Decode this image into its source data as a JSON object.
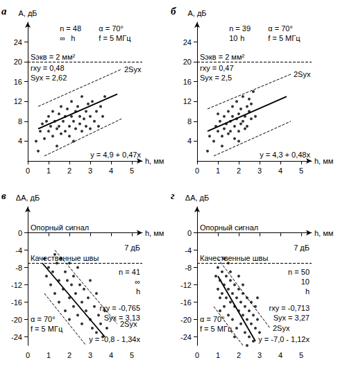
{
  "chart_data": [
    {
      "type": "scatter",
      "panel": "а",
      "x_label": "h, мм",
      "y_label": "A, дБ",
      "xlim": [
        0,
        5.5
      ],
      "xticks": [
        0,
        1,
        2,
        3,
        4,
        5
      ],
      "ylim": [
        0,
        28
      ],
      "yticks": [
        4,
        8,
        12,
        16,
        20,
        24
      ],
      "x": [
        0.4,
        0.5,
        0.6,
        0.7,
        0.8,
        0.9,
        1.0,
        1.0,
        1.1,
        1.2,
        1.2,
        1.3,
        1.4,
        1.5,
        1.5,
        1.6,
        1.6,
        1.7,
        1.8,
        1.8,
        1.9,
        2.0,
        2.0,
        2.1,
        2.1,
        2.2,
        2.3,
        2.3,
        2.4,
        2.5,
        2.5,
        2.6,
        2.6,
        2.7,
        2.8,
        2.8,
        2.9,
        3.0,
        3.0,
        3.1,
        3.2,
        3.3,
        3.4,
        3.5,
        3.6,
        3.7,
        1.4,
        2.2
      ],
      "values": [
        4,
        2,
        6,
        7.5,
        4.5,
        8,
        9,
        6,
        7,
        5,
        10,
        8,
        6.5,
        9.5,
        7,
        11,
        5.5,
        8,
        6,
        9,
        10.5,
        7,
        5,
        9,
        12,
        8,
        6.5,
        10,
        11,
        7.5,
        9,
        13,
        6,
        8.5,
        10,
        7,
        11.5,
        9,
        6.5,
        12,
        8,
        10,
        7,
        11,
        9,
        13,
        3,
        4
      ],
      "fit_line": {
        "x": [
          0.5,
          4.3
        ],
        "y": [
          6.5,
          13.5
        ]
      },
      "band_upper": {
        "x": [
          0.5,
          4.5
        ],
        "y": [
          11,
          18.5
        ]
      },
      "band_lower": {
        "x": [
          0.8,
          4.5
        ],
        "y": [
          1,
          8.5
        ]
      },
      "ref_lines": [
        {
          "y": 20,
          "label": "Sэкв = 2 мм²"
        }
      ],
      "n_label": "n = 48",
      "params": [
        "α = 70°",
        "f = 5 МГц"
      ],
      "diagram_labels": [
        "∞",
        "h"
      ],
      "stats": [
        "rxy = 0,48",
        "Syx = 2,62"
      ],
      "band_label": "2Syx",
      "equation": "y = 4,9 + 0,47x"
    },
    {
      "type": "scatter",
      "panel": "б",
      "x_label": "h, мм",
      "y_label": "A, дБ",
      "xlim": [
        0,
        5.5
      ],
      "xticks": [
        0,
        1,
        2,
        3,
        4,
        5
      ],
      "ylim": [
        0,
        28
      ],
      "yticks": [
        4,
        8,
        12,
        16,
        20,
        24
      ],
      "x": [
        0.5,
        0.6,
        0.8,
        0.9,
        1.0,
        1.1,
        1.2,
        1.3,
        1.3,
        1.4,
        1.5,
        1.5,
        1.6,
        1.6,
        1.7,
        1.7,
        1.8,
        1.8,
        1.9,
        1.9,
        2.0,
        2.0,
        2.1,
        2.1,
        2.2,
        2.2,
        2.3,
        2.3,
        2.4,
        2.4,
        2.5,
        2.5,
        2.6,
        2.7,
        2.8,
        1.2,
        1.0,
        2.0,
        2.6
      ],
      "values": [
        2,
        5,
        4,
        7,
        6,
        8,
        5,
        9,
        6.5,
        7.5,
        10,
        5.5,
        8,
        6,
        9,
        11,
        7,
        4.5,
        8.5,
        12,
        6,
        9.5,
        7.5,
        10.5,
        8,
        13,
        9,
        6.5,
        11,
        7,
        10,
        12.5,
        8.5,
        14,
        9,
        3,
        9.5,
        4,
        11.5
      ],
      "fit_line": {
        "x": [
          0.5,
          4.3
        ],
        "y": [
          6,
          13
        ]
      },
      "band_upper": {
        "x": [
          0.5,
          4.5
        ],
        "y": [
          10.5,
          17.5
        ]
      },
      "band_lower": {
        "x": [
          0.8,
          4.5
        ],
        "y": [
          1,
          8
        ]
      },
      "ref_lines": [
        {
          "y": 20,
          "label": "Sэкв = 2 мм²"
        }
      ],
      "n_label": "n = 39",
      "params": [
        "α = 70°",
        "f = 5 МГц"
      ],
      "diagram_labels": [
        "10",
        "h"
      ],
      "stats": [
        "rxy = 0,47",
        "Syx = 2,5"
      ],
      "band_label": "2Syx",
      "equation": "y = 4,3 + 0,48x"
    },
    {
      "type": "scatter",
      "panel": "в",
      "x_label": "h, мм",
      "y_label": "ΔA, дБ",
      "xlim": [
        0,
        5.5
      ],
      "xticks": [
        0,
        1,
        2,
        3,
        4,
        5
      ],
      "ylim": [
        -26,
        6
      ],
      "yticks": [
        -24,
        -20,
        -16,
        -12,
        -8,
        -4,
        0
      ],
      "x": [
        0.8,
        0.9,
        1.0,
        1.1,
        1.2,
        1.3,
        1.3,
        1.4,
        1.5,
        1.5,
        1.6,
        1.7,
        1.8,
        1.8,
        1.9,
        2.0,
        2.0,
        2.1,
        2.2,
        2.2,
        2.3,
        2.4,
        2.4,
        2.5,
        2.6,
        2.6,
        2.7,
        2.8,
        2.9,
        3.0,
        3.0,
        3.1,
        3.2,
        3.3,
        3.3,
        3.4,
        3.5,
        3.6,
        3.7,
        3.8,
        2.0
      ],
      "values": [
        -6,
        -10,
        -8,
        -12,
        -9,
        -5,
        -14,
        -7,
        -11,
        -16,
        -6,
        -13,
        -9,
        -18,
        -11,
        -15,
        -7,
        -12,
        -17,
        -10,
        -14,
        -8,
        -19,
        -12,
        -16,
        -21,
        -13,
        -18,
        -15,
        -20,
        -11,
        -22,
        -17,
        -14,
        -23,
        -19,
        -21,
        -24,
        -18,
        -22,
        -20
      ],
      "fit_line": {
        "x": [
          0.7,
          3.7
        ],
        "y": [
          -7,
          -24
        ]
      },
      "band_upper": {
        "x": [
          1.3,
          4.3
        ],
        "y": [
          -4,
          -21
        ]
      },
      "band_lower": {
        "x": [
          0.8,
          2.8
        ],
        "y": [
          -14,
          -26
        ]
      },
      "ref_lines": [
        {
          "y": 0,
          "label": "Опорный сигнал"
        },
        {
          "y": -7,
          "label": "Качественные швы"
        }
      ],
      "gap_label": "7 дБ",
      "n_label": "n = 41",
      "params": [
        "α = 70°",
        "f = 5 МГц"
      ],
      "diagram_labels": [
        "∞",
        "h"
      ],
      "stats": [
        "rxy = -0,765",
        "Syx = 3,13"
      ],
      "band_label": "2Syx",
      "equation": "y = -0,8 - 1,34x"
    },
    {
      "type": "scatter",
      "panel": "г",
      "x_label": "h, мм",
      "y_label": "ΔA, дБ",
      "xlim": [
        0,
        5.5
      ],
      "xticks": [
        0,
        1,
        2,
        3,
        4,
        5
      ],
      "ylim": [
        -26,
        6
      ],
      "yticks": [
        -24,
        -20,
        -16,
        -12,
        -8,
        -4,
        0
      ],
      "x": [
        0.9,
        1.0,
        1.0,
        1.1,
        1.1,
        1.2,
        1.2,
        1.3,
        1.3,
        1.4,
        1.4,
        1.5,
        1.5,
        1.5,
        1.6,
        1.6,
        1.7,
        1.7,
        1.8,
        1.8,
        1.9,
        1.9,
        2.0,
        2.0,
        2.0,
        2.1,
        2.1,
        2.2,
        2.2,
        2.3,
        2.3,
        2.4,
        2.4,
        2.5,
        2.5,
        2.6,
        2.6,
        2.7,
        2.7,
        2.8,
        2.8,
        2.9,
        3.0,
        1.3,
        1.6,
        1.8,
        2.2,
        2.4,
        1.1,
        2.9
      ],
      "values": [
        -10,
        -13,
        -8,
        -11,
        -15,
        -9,
        -14,
        -12,
        -17,
        -10,
        -15,
        -13,
        -19,
        -7,
        -11,
        -16,
        -14,
        -20,
        -12,
        -17,
        -15,
        -22,
        -13,
        -18,
        -10,
        -16,
        -21,
        -14,
        -19,
        -17,
        -23,
        -15,
        -20,
        -18,
        -24,
        -16,
        -21,
        -19,
        -25,
        -22,
        -17,
        -20,
        -23,
        -6,
        -9,
        -24,
        -12,
        -26,
        -18,
        -15
      ],
      "fit_line": {
        "x": [
          1.0,
          2.8
        ],
        "y": [
          -10,
          -25
        ]
      },
      "band_upper": {
        "x": [
          1.0,
          3.5
        ],
        "y": [
          -6,
          -22
        ]
      },
      "band_lower": {
        "x": [
          0.8,
          2.2
        ],
        "y": [
          -17,
          -26
        ]
      },
      "ref_lines": [
        {
          "y": 0,
          "label": "Опорный сигнал"
        },
        {
          "y": -7,
          "label": "Качественные швы"
        }
      ],
      "gap_label": "7 дБ",
      "n_label": "n = 50",
      "params": [
        "α = 70°",
        "f = 5 МГц"
      ],
      "diagram_labels": [
        "10",
        "h"
      ],
      "stats": [
        "rxy = -0,713",
        "Syx = 3,27"
      ],
      "band_label": "2Syx",
      "equation": "y = -7,0 - 1,12x"
    }
  ]
}
